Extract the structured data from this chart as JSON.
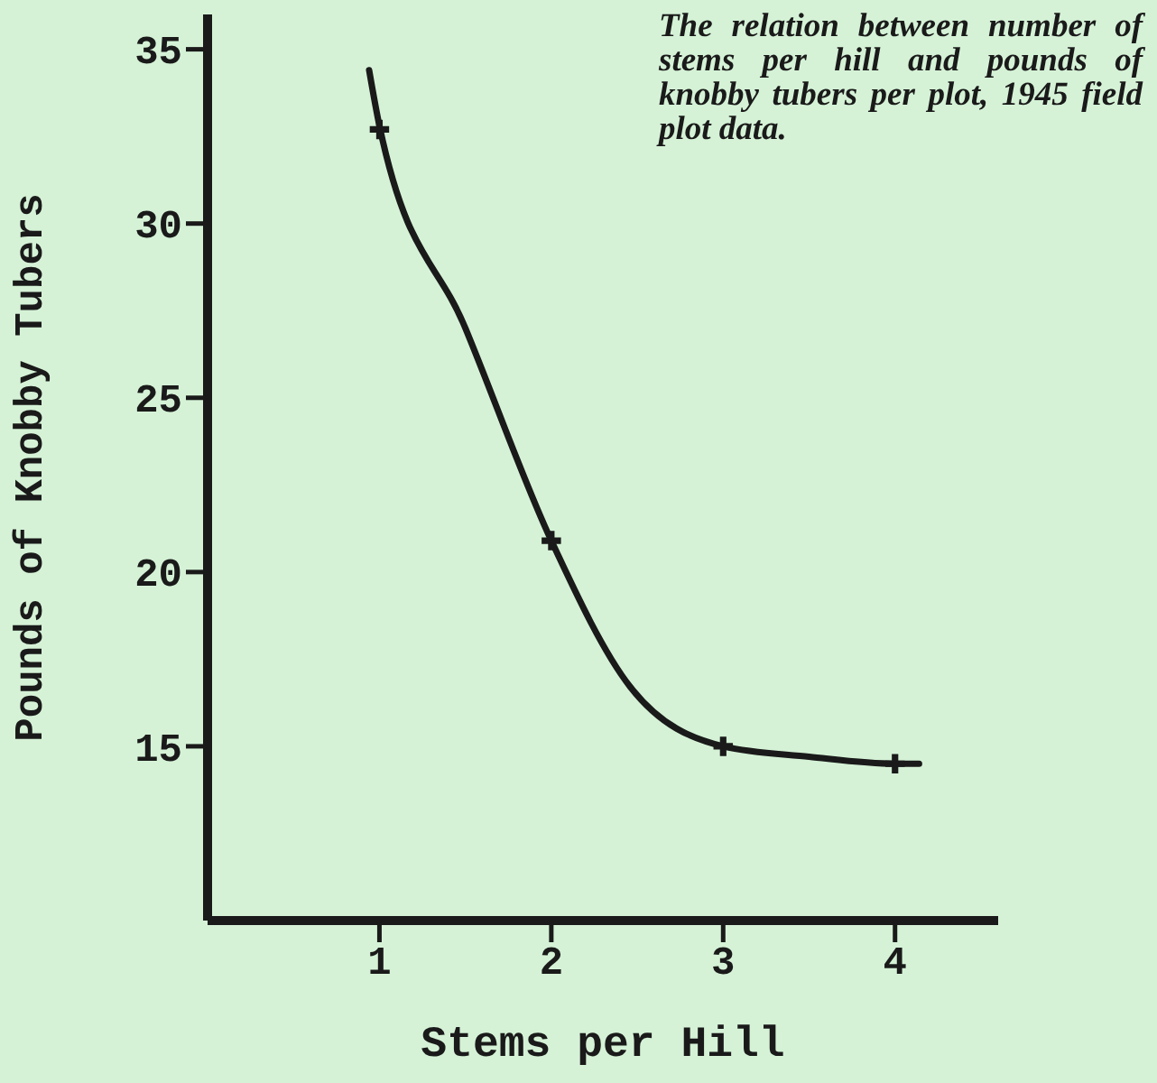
{
  "chart_data": {
    "type": "line",
    "xlabel": "Stems per Hill",
    "ylabel": "Pounds of Knobby Tubers",
    "annotations": [
      "The relation between number of stems per hill and pounds of knobby tubers per plot, 1945 field plot data."
    ],
    "xlim": [
      0,
      4.6
    ],
    "xticks": [
      1,
      2,
      3,
      4
    ],
    "ylim": [
      10,
      36
    ],
    "yticks": [
      15,
      20,
      25,
      30,
      35
    ],
    "series": [
      {
        "type": "scatter",
        "marker": "cross",
        "color": "#1a1a1a",
        "x": [
          1,
          2,
          3,
          4
        ],
        "values": [
          32.7,
          20.9,
          15,
          14.5
        ]
      },
      {
        "type": "line",
        "marker": "none",
        "color": "#1a1a1a",
        "x": [
          0.94,
          1,
          1.5,
          2,
          2.46,
          3,
          3.5,
          4,
          4.14
        ],
        "values": [
          34.4,
          32.8,
          27.0,
          20.9,
          16.7,
          15,
          14.7,
          14.5,
          14.5
        ]
      }
    ]
  }
}
